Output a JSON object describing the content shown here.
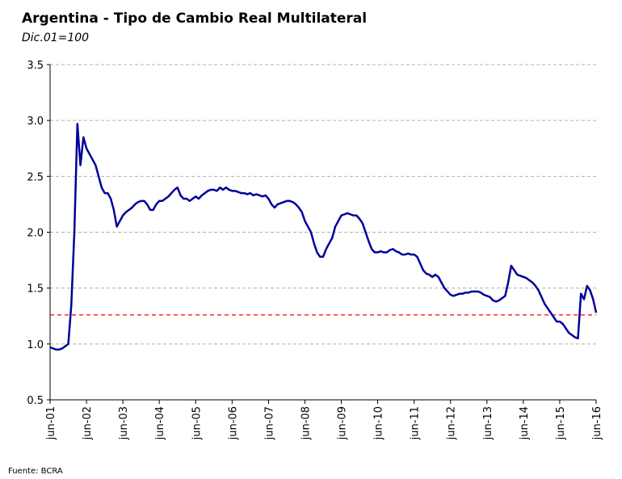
{
  "chart_data": {
    "type": "line",
    "title": "Argentina - Tipo de Cambio Real Multilateral",
    "subtitle": "Dic.01=100",
    "source": "Fuente: BCRA",
    "categories": [
      "jun-01",
      null,
      null,
      null,
      null,
      null,
      null,
      null,
      null,
      null,
      null,
      null,
      "jun-02",
      null,
      null,
      null,
      null,
      null,
      null,
      null,
      null,
      null,
      null,
      null,
      "jun-03",
      null,
      null,
      null,
      null,
      null,
      null,
      null,
      null,
      null,
      null,
      null,
      "jun-04",
      null,
      null,
      null,
      null,
      null,
      null,
      null,
      null,
      null,
      null,
      null,
      "jun-05",
      null,
      null,
      null,
      null,
      null,
      null,
      null,
      null,
      null,
      null,
      null,
      "jun-06",
      null,
      null,
      null,
      null,
      null,
      null,
      null,
      null,
      null,
      null,
      null,
      "jun-07",
      null,
      null,
      null,
      null,
      null,
      null,
      null,
      null,
      null,
      null,
      null,
      "jun-08",
      null,
      null,
      null,
      null,
      null,
      null,
      null,
      null,
      null,
      null,
      null,
      "jun-09",
      null,
      null,
      null,
      null,
      null,
      null,
      null,
      null,
      null,
      null,
      null,
      "jun-10",
      null,
      null,
      null,
      null,
      null,
      null,
      null,
      null,
      null,
      null,
      null,
      "jun-11",
      null,
      null,
      null,
      null,
      null,
      null,
      null,
      null,
      null,
      null,
      null,
      "jun-12",
      null,
      null,
      null,
      null,
      null,
      null,
      null,
      null,
      null,
      null,
      null,
      "jun-13",
      null,
      null,
      null,
      null,
      null,
      null,
      null,
      null,
      null,
      null,
      null,
      "jun-14",
      null,
      null,
      null,
      null,
      null,
      null,
      null,
      null,
      null,
      null,
      null,
      "jun-15",
      null,
      null,
      null,
      null,
      null,
      null,
      null,
      null,
      null,
      null,
      null,
      "jun-16"
    ],
    "values": [
      0.97,
      0.96,
      0.95,
      0.95,
      0.96,
      0.98,
      1.0,
      1.35,
      2.0,
      2.97,
      2.6,
      2.85,
      2.75,
      2.7,
      2.65,
      2.6,
      2.5,
      2.4,
      2.35,
      2.35,
      2.3,
      2.2,
      2.05,
      2.1,
      2.15,
      2.18,
      2.2,
      2.22,
      2.25,
      2.27,
      2.28,
      2.28,
      2.25,
      2.2,
      2.2,
      2.25,
      2.28,
      2.28,
      2.3,
      2.32,
      2.35,
      2.38,
      2.4,
      2.33,
      2.3,
      2.3,
      2.28,
      2.3,
      2.32,
      2.3,
      2.33,
      2.35,
      2.37,
      2.38,
      2.38,
      2.37,
      2.4,
      2.38,
      2.4,
      2.38,
      2.37,
      2.37,
      2.36,
      2.35,
      2.35,
      2.34,
      2.35,
      2.33,
      2.34,
      2.33,
      2.32,
      2.33,
      2.3,
      2.25,
      2.22,
      2.25,
      2.26,
      2.27,
      2.28,
      2.28,
      2.27,
      2.25,
      2.22,
      2.18,
      2.1,
      2.05,
      2.0,
      1.9,
      1.82,
      1.78,
      1.78,
      1.85,
      1.9,
      1.95,
      2.05,
      2.1,
      2.15,
      2.16,
      2.17,
      2.16,
      2.15,
      2.15,
      2.12,
      2.08,
      2.0,
      1.92,
      1.85,
      1.82,
      1.82,
      1.83,
      1.82,
      1.82,
      1.84,
      1.85,
      1.83,
      1.82,
      1.8,
      1.8,
      1.81,
      1.8,
      1.8,
      1.78,
      1.72,
      1.66,
      1.63,
      1.62,
      1.6,
      1.62,
      1.6,
      1.55,
      1.5,
      1.47,
      1.44,
      1.43,
      1.44,
      1.45,
      1.45,
      1.46,
      1.46,
      1.47,
      1.47,
      1.47,
      1.46,
      1.44,
      1.43,
      1.42,
      1.39,
      1.38,
      1.39,
      1.41,
      1.43,
      1.55,
      1.7,
      1.66,
      1.62,
      1.61,
      1.6,
      1.59,
      1.57,
      1.55,
      1.52,
      1.48,
      1.42,
      1.36,
      1.32,
      1.28,
      1.24,
      1.2,
      1.2,
      1.18,
      1.14,
      1.1,
      1.08,
      1.06,
      1.05,
      1.45,
      1.4,
      1.52,
      1.48,
      1.4,
      1.28
    ],
    "color": "#000099",
    "reference_line": 1.26,
    "reference_color": "#ff0000",
    "ylim": [
      0.5,
      3.5
    ],
    "yticks": [
      0.5,
      {
        "value": 1,
        "label": "1.0"
      },
      1.5,
      {
        "value": 2,
        "label": "2.0"
      },
      2.5,
      {
        "value": 3,
        "label": "3.0"
      },
      3.5
    ],
    "grid": true
  }
}
